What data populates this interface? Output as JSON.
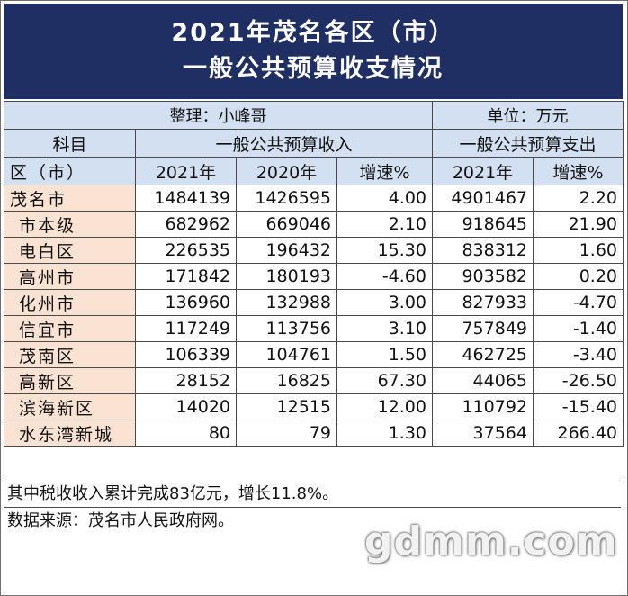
{
  "title": {
    "line1": "2021年茂名各区（市）",
    "line2": "一般公共预算收支情况"
  },
  "meta": {
    "compiler": "整理：小峰哥",
    "unit": "单位：万元"
  },
  "headers": {
    "subject": "科目",
    "revenue_group": "一般公共预算收入",
    "expense_group": "一般公共预算支出",
    "district": "区（市）",
    "rev_2021": "2021年",
    "rev_2020": "2020年",
    "rev_growth": "增速%",
    "exp_2021": "2021年",
    "exp_growth": "增速%"
  },
  "rows": [
    {
      "name": "茂名市",
      "rev_2021": "1484139",
      "rev_2020": "1426595",
      "rev_growth": "4.00",
      "exp_2021": "4901467",
      "exp_growth": "2.20"
    },
    {
      "name": "市本级",
      "rev_2021": "682962",
      "rev_2020": "669046",
      "rev_growth": "2.10",
      "exp_2021": "918645",
      "exp_growth": "21.90"
    },
    {
      "name": "电白区",
      "rev_2021": "226535",
      "rev_2020": "196432",
      "rev_growth": "15.30",
      "exp_2021": "838312",
      "exp_growth": "1.60"
    },
    {
      "name": "高州市",
      "rev_2021": "171842",
      "rev_2020": "180193",
      "rev_growth": "-4.60",
      "exp_2021": "903582",
      "exp_growth": "0.20"
    },
    {
      "name": "化州市",
      "rev_2021": "136960",
      "rev_2020": "132988",
      "rev_growth": "3.00",
      "exp_2021": "827933",
      "exp_growth": "-4.70"
    },
    {
      "name": "信宜市",
      "rev_2021": "117249",
      "rev_2020": "113756",
      "rev_growth": "3.10",
      "exp_2021": "757849",
      "exp_growth": "-1.40"
    },
    {
      "name": "茂南区",
      "rev_2021": "106339",
      "rev_2020": "104761",
      "rev_growth": "1.50",
      "exp_2021": "462725",
      "exp_growth": "-3.40"
    },
    {
      "name": "高新区",
      "rev_2021": "28152",
      "rev_2020": "16825",
      "rev_growth": "67.30",
      "exp_2021": "44065",
      "exp_growth": "-26.50"
    },
    {
      "name": "滨海新区",
      "rev_2021": "14020",
      "rev_2020": "12515",
      "rev_growth": "12.00",
      "exp_2021": "110792",
      "exp_growth": "-15.40"
    },
    {
      "name": "水东湾新城",
      "rev_2021": "80",
      "rev_2020": "79",
      "rev_growth": "1.30",
      "exp_2021": "37564",
      "exp_growth": "266.40"
    }
  ],
  "notes": {
    "tax_note": "其中税收收入累计完成83亿元，增长11.8%。",
    "source": "数据来源：茂名市人民政府网。"
  },
  "watermark": "gdmm.com",
  "colors": {
    "title_bg": "#1f2f63",
    "header_bg": "#d3e0f1",
    "name_bg": "#fbe3d4"
  }
}
